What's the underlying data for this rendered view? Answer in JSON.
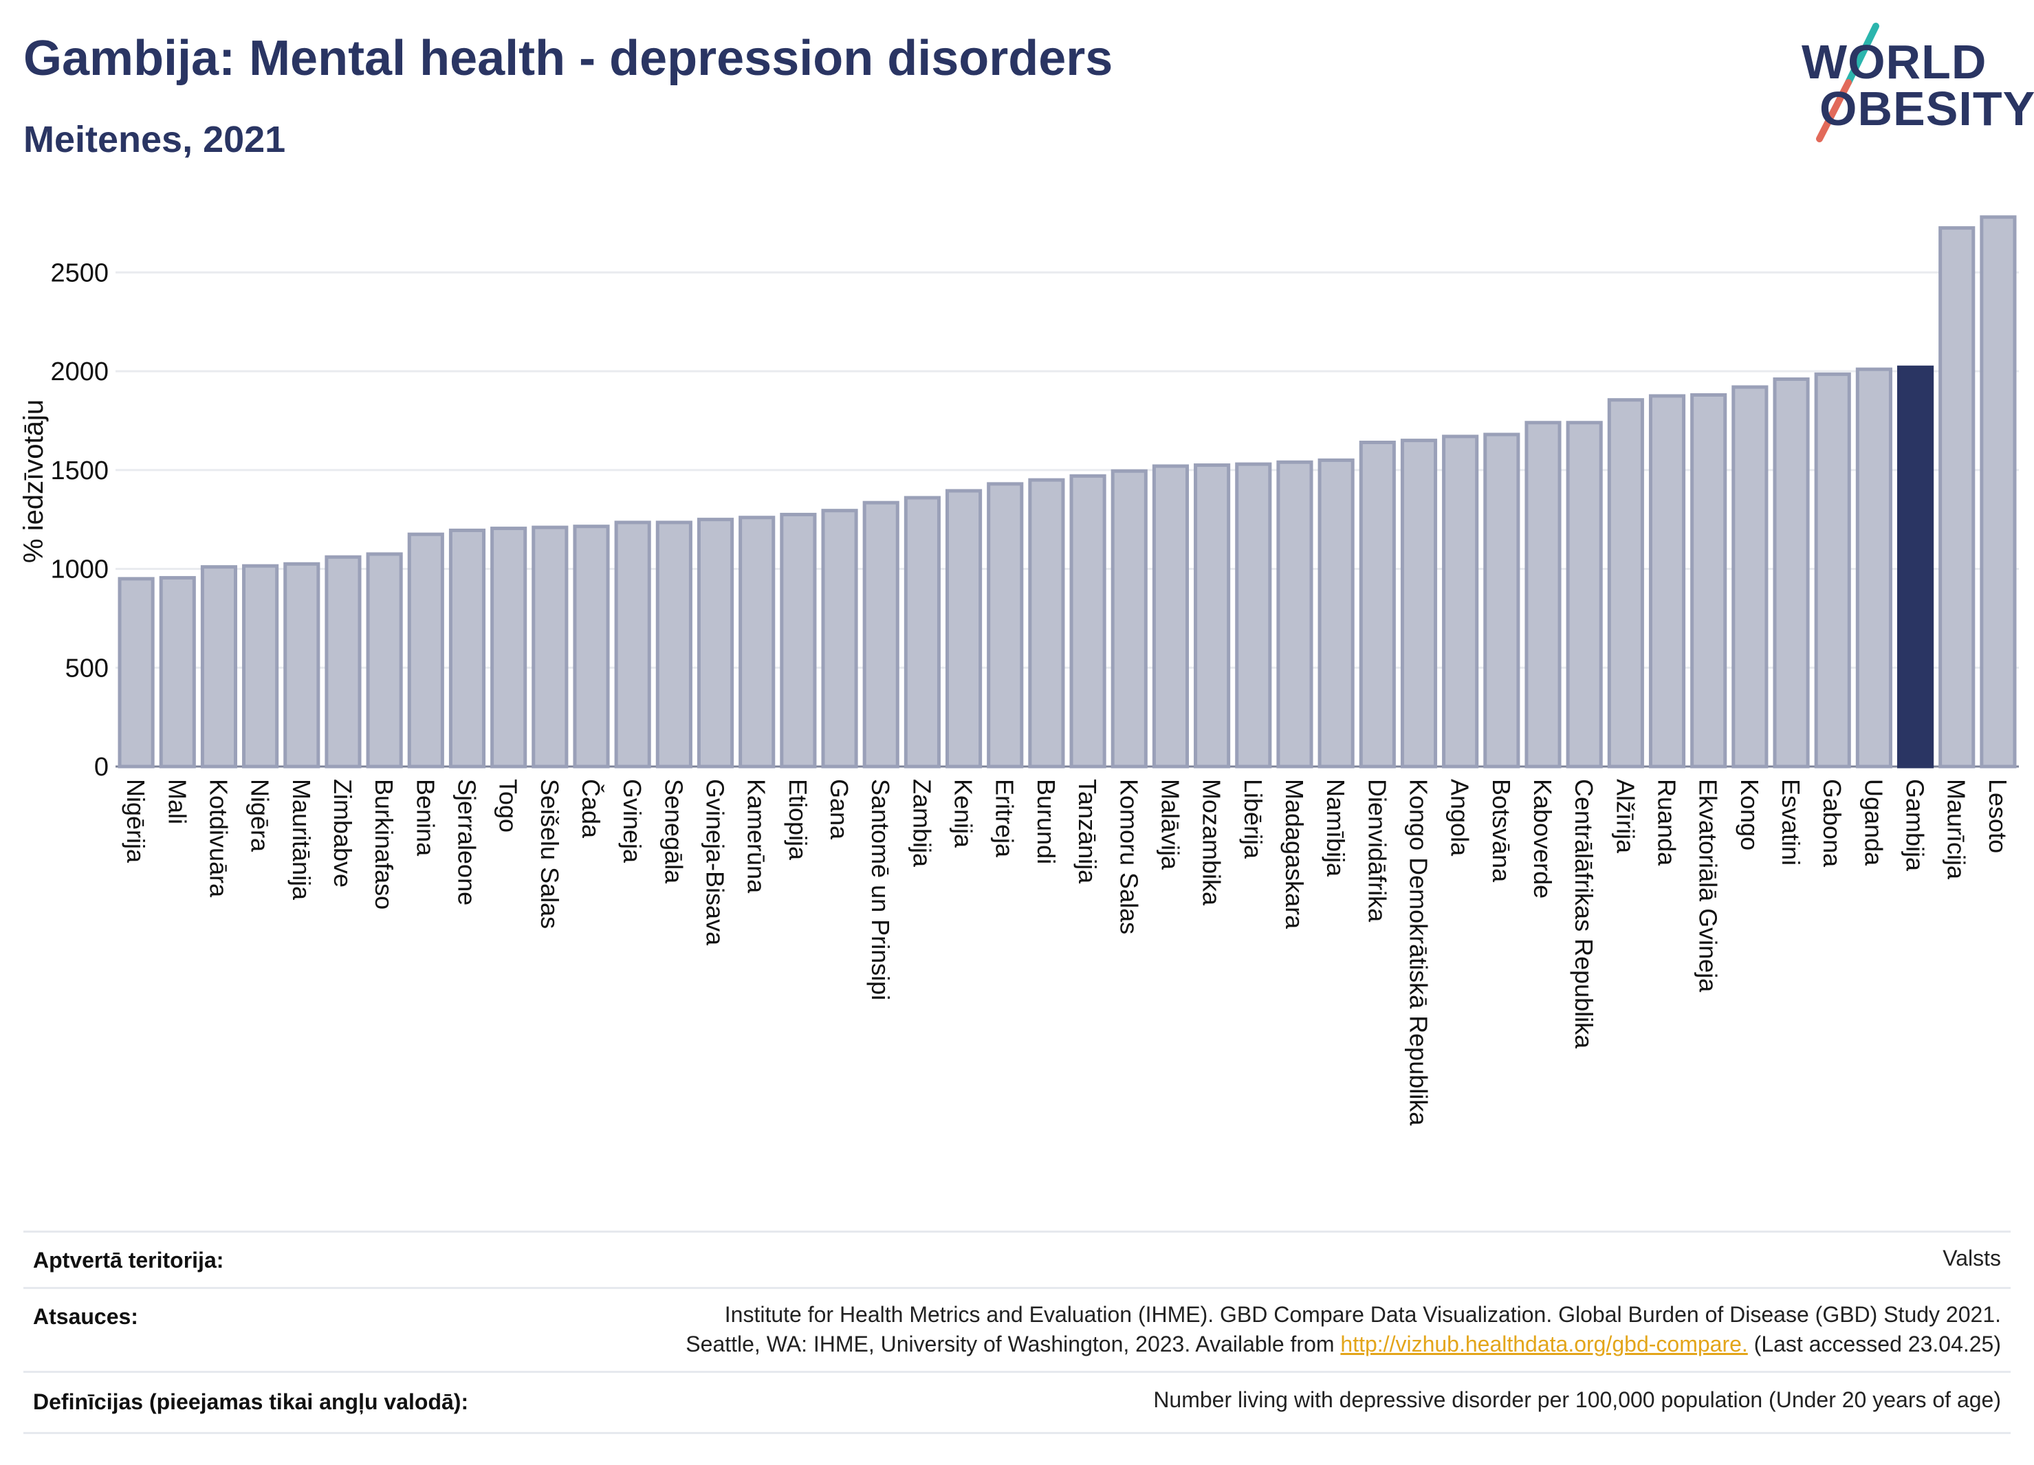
{
  "header": {
    "title": "Gambija: Mental health - depression disorders",
    "subtitle": "Meitenes, 2021"
  },
  "logo": {
    "line1": "WORLD",
    "line2": "OBESITY",
    "accent_teal": "#2bb5ad",
    "accent_red": "#e26a5a"
  },
  "colors": {
    "bar": "#bcc0cf",
    "bar_edge": "#9aa0b8",
    "highlight": "#2a3563",
    "grid": "#e9ebef",
    "text": "#2a3563"
  },
  "chart_data": {
    "type": "bar",
    "ylabel": "% iedzīvotāju",
    "ylim": [
      0,
      2800
    ],
    "yticks": [
      0,
      500,
      1000,
      1500,
      2000,
      2500
    ],
    "grid": true,
    "highlight": "Gambija",
    "categories": [
      "Nigērija",
      "Mali",
      "Kotdivuāra",
      "Nigēra",
      "Mauritānija",
      "Zimbabve",
      "Burkinafaso",
      "Benina",
      "Sjerraleone",
      "Togo",
      "Seišelu Salas",
      "Čada",
      "Gvineja",
      "Senegāla",
      "Gvineja-Bisava",
      "Kamerūna",
      "Etiopija",
      "Gana",
      "Santomē un Prinsipi",
      "Zambija",
      "Kenija",
      "Eritreja",
      "Burundi",
      "Tanzānija",
      "Komoru Salas",
      "Malāvija",
      "Mozambika",
      "Libērija",
      "Madagaskara",
      "Namībija",
      "Dienvidāfrika",
      "Kongo Demokrātiskā Republika",
      "Angola",
      "Botsvāna",
      "Kaboverde",
      "Centrālāfrikas Republika",
      "Alžīrija",
      "Ruanda",
      "Ekvatoriālā Gvineja",
      "Kongo",
      "Esvatini",
      "Gabona",
      "Uganda",
      "Gambija",
      "Maurīcija",
      "Lesoto"
    ],
    "values": [
      950,
      955,
      1010,
      1015,
      1025,
      1060,
      1075,
      1175,
      1195,
      1205,
      1210,
      1215,
      1235,
      1235,
      1250,
      1260,
      1275,
      1295,
      1335,
      1360,
      1395,
      1430,
      1450,
      1470,
      1495,
      1520,
      1525,
      1530,
      1540,
      1550,
      1640,
      1650,
      1670,
      1680,
      1740,
      1740,
      1855,
      1875,
      1880,
      1920,
      1960,
      1985,
      2010,
      2020,
      2725,
      2780
    ]
  },
  "footer": {
    "territory_label": "Aptvertā teritorija:",
    "territory_value": "Valsts",
    "sources_label": "Atsauces:",
    "sources_line1": "Institute for Health Metrics and Evaluation (IHME). GBD Compare Data Visualization. Global Burden of Disease (GBD) Study 2021.",
    "sources_line2_pre": "Seattle, WA: IHME, University of Washington, 2023. Available from ",
    "sources_link": "http://vizhub.healthdata.org/gbd-compare.",
    "sources_line2_post": " (Last accessed 23.04.25)",
    "definitions_label": "Definīcijas (pieejamas tikai angļu valodā):",
    "definitions_value": "Number living with depressive disorder per 100,000 population (Under 20 years of age)"
  }
}
